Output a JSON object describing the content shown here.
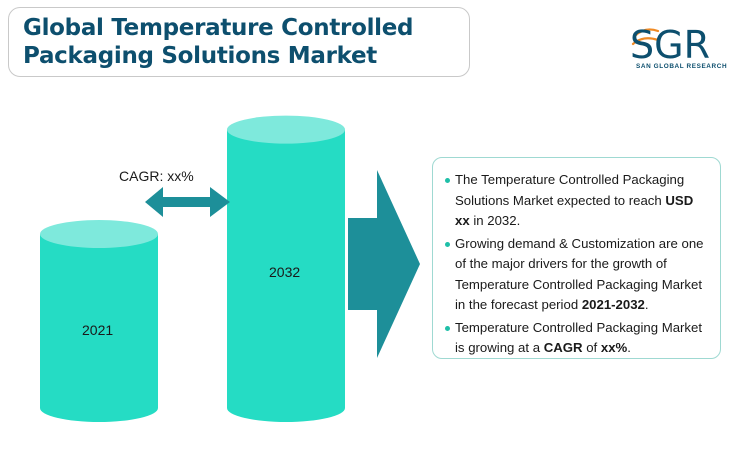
{
  "header": {
    "title_line1": "Global Temperature Controlled",
    "title_line2": "Packaging Solutions Market"
  },
  "logo": {
    "text": "SGR",
    "subtitle": "SAN GLOBAL RESEARCH",
    "colors": {
      "primary": "#0d4f6e",
      "accent": "#f08a24"
    }
  },
  "chart_data": {
    "type": "bar",
    "categories": [
      "2021",
      "2032"
    ],
    "values": [
      1,
      1.6
    ],
    "relative_heights_only": true,
    "title": "",
    "xlabel": "",
    "ylabel": "",
    "annotation": "CAGR: xx%",
    "colors": {
      "body": "#25dcc4",
      "top": "#7ee9dc",
      "arrow": "#1d8f99"
    }
  },
  "info": {
    "bullets": [
      [
        {
          "t": "The Temperature Controlled Packaging Solutions Market expected to reach ",
          "b": false
        },
        {
          "t": "USD xx",
          "b": true
        },
        {
          "t": " in 2032.",
          "b": false
        }
      ],
      [
        {
          "t": "Growing demand & Customization are one of the major drivers for the growth of Temperature Controlled Packaging Market in the forecast period ",
          "b": false
        },
        {
          "t": "2021-2032",
          "b": true
        },
        {
          "t": ".",
          "b": false
        }
      ],
      [
        {
          "t": "Temperature Controlled Packaging Market is growing at a ",
          "b": false
        },
        {
          "t": "CAGR",
          "b": true
        },
        {
          "t": " of ",
          "b": false
        },
        {
          "t": "xx%",
          "b": true
        },
        {
          "t": ".",
          "b": false
        }
      ]
    ]
  }
}
